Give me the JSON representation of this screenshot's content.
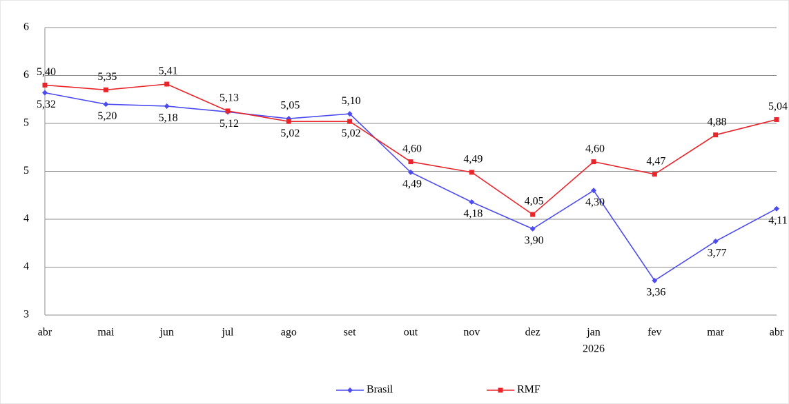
{
  "chart_data": {
    "type": "line",
    "categories": [
      "abr",
      "mai",
      "jun",
      "jul",
      "ago",
      "set",
      "out",
      "nov",
      "dez",
      "jan",
      "fev",
      "mar",
      "abr"
    ],
    "x_group_labels": [
      null,
      null,
      null,
      null,
      null,
      null,
      null,
      null,
      null,
      "2026",
      null,
      null,
      null
    ],
    "series": [
      {
        "name": "Brasil",
        "color": "#4b4bf0",
        "marker": "diamond",
        "values": [
          5.32,
          5.2,
          5.18,
          5.12,
          5.05,
          5.1,
          4.49,
          4.18,
          3.9,
          4.3,
          3.36,
          3.77,
          4.11
        ],
        "value_labels": [
          "5,32",
          "5,20",
          "5,18",
          "5,12",
          "5,05",
          "5,10",
          "4,49",
          "4,18",
          "3,90",
          "4,30",
          "3,36",
          "3,77",
          "4,11"
        ]
      },
      {
        "name": "RMF",
        "color": "#e8252b",
        "marker": "square",
        "values": [
          5.4,
          5.35,
          5.41,
          5.13,
          5.02,
          5.02,
          4.6,
          4.49,
          4.05,
          4.6,
          4.47,
          4.88,
          5.04
        ],
        "value_labels": [
          "5,40",
          "5,35",
          "5,41",
          "5,13",
          "5,02",
          "5,02",
          "4,60",
          "4,49",
          "4,05",
          "4,60",
          "4,47",
          "4,88",
          "5,04"
        ]
      }
    ],
    "ylim": [
      3,
      6
    ],
    "yticks": [
      3,
      {
        "value": 3.5,
        "label": "4"
      },
      4,
      {
        "value": 4.5,
        "label": "5"
      },
      5,
      {
        "value": 5.5,
        "label": "6"
      },
      6
    ],
    "grid": true,
    "legend": "bottom"
  }
}
